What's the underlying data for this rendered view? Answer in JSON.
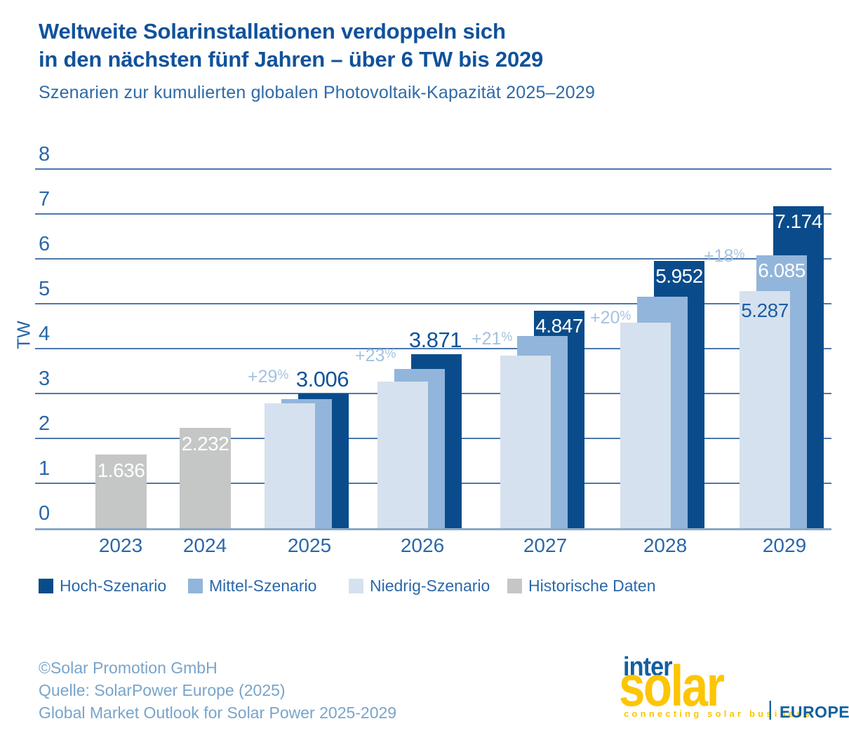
{
  "header": {
    "title_line1": "Weltweite Solarinstallationen verdoppeln sich",
    "title_line2": "in den nächsten fünf Jahren – über 6 TW bis 2029",
    "subtitle": "Szenarien zur kumulierten globalen Photovoltaik-Kapazität 2025–2029"
  },
  "chart_data": {
    "type": "bar",
    "title": "Weltweite Solarinstallationen verdoppeln sich in den nächsten fünf Jahren – über 6 TW bis 2029",
    "subtitle": "Szenarien zur kumulierten globalen Photovoltaik-Kapazität 2025–2029",
    "xlabel": "",
    "ylabel": "TW",
    "ylim": [
      0,
      8
    ],
    "yticks": [
      0,
      1,
      2,
      3,
      4,
      5,
      6,
      7,
      8
    ],
    "grid": true,
    "legend_position": "bottom",
    "categories": [
      "2023",
      "2024",
      "2025",
      "2026",
      "2027",
      "2028",
      "2029"
    ],
    "series": [
      {
        "key": "hoch",
        "name": "Hoch-Szenario",
        "color": "#0a4c8b",
        "values": [
          null,
          null,
          3.006,
          3.871,
          4.847,
          5.952,
          7.174
        ]
      },
      {
        "key": "mittel",
        "name": "Mittel-Szenario",
        "color": "#92b5db",
        "values": [
          null,
          null,
          2.88,
          3.54,
          4.28,
          5.16,
          6.085
        ]
      },
      {
        "key": "niedrig",
        "name": "Niedrig-Szenario",
        "color": "#d5e1ee",
        "values": [
          null,
          null,
          2.78,
          3.27,
          3.85,
          4.58,
          5.287
        ]
      },
      {
        "key": "hist",
        "name": "Historische Daten",
        "color": "#c5c6c6",
        "values": [
          1.636,
          2.232,
          null,
          null,
          null,
          null,
          null
        ]
      }
    ],
    "bar_labels": [
      {
        "id": "hist-2023",
        "text": "1.636"
      },
      {
        "id": "hist-2024",
        "text": "2.232"
      },
      {
        "id": "hoch-2025",
        "text": "3.006"
      },
      {
        "id": "hoch-2026",
        "text": "3.871"
      },
      {
        "id": "hoch-2027",
        "text": "4.847"
      },
      {
        "id": "hoch-2028",
        "text": "5.952"
      },
      {
        "id": "hoch-2029",
        "text": "7.174"
      },
      {
        "id": "mittel-2029",
        "text": "6.085"
      },
      {
        "id": "niedrig-2029",
        "text": "5.287"
      }
    ],
    "growth_labels": [
      {
        "id": "pct-2025",
        "text": "+29%"
      },
      {
        "id": "pct-2026",
        "text": "+23%"
      },
      {
        "id": "pct-2027",
        "text": "+21%"
      },
      {
        "id": "pct-2028",
        "text": "+20%"
      },
      {
        "id": "pct-2029",
        "text": "+18%"
      }
    ]
  },
  "legend": {
    "items": [
      {
        "label": "Hoch-Szenario",
        "color": "#0a4c8b"
      },
      {
        "label": "Mittel-Szenario",
        "color": "#92b5db"
      },
      {
        "label": "Niedrig-Szenario",
        "color": "#d5e1ee"
      },
      {
        "label": "Historische Daten",
        "color": "#c5c6c6"
      }
    ]
  },
  "footer": {
    "copyright": "©Solar Promotion GmbH",
    "source_line1": "Quelle: SolarPower Europe (2025)",
    "source_line2": "Global Market Outlook for Solar Power 2025-2029"
  },
  "logo": {
    "word_top": "inter",
    "word_main": "solar",
    "tagline": "connecting solar business",
    "divider": "|",
    "region": "EUROPE",
    "blue": "#11609f",
    "yellow": "#fdc502"
  }
}
